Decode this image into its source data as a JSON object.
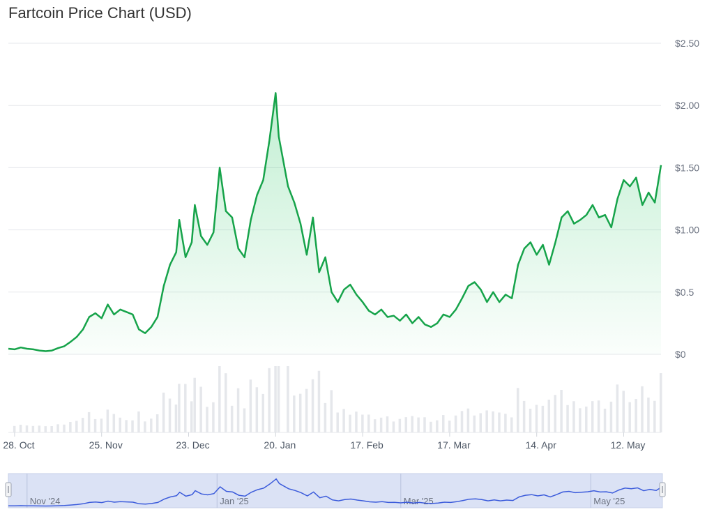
{
  "chart_data": {
    "type": "line",
    "title": "Fartcoin Price Chart (USD)",
    "currency": "USD",
    "y_ticks": [
      "$0",
      "$0.5",
      "$1.00",
      "$1.50",
      "$2.00",
      "$2.50"
    ],
    "y_tick_values": [
      0,
      0.5,
      1.0,
      1.5,
      2.0,
      2.5
    ],
    "ylim": [
      0,
      2.5
    ],
    "x_ticks": [
      "28. Oct",
      "25. Nov",
      "23. Dec",
      "20. Jan",
      "17. Feb",
      "17. Mar",
      "14. Apr",
      "12. May"
    ],
    "x_tick_dates": [
      "2024-10-28",
      "2024-11-25",
      "2024-12-23",
      "2025-01-20",
      "2025-02-17",
      "2025-03-17",
      "2025-04-14",
      "2025-05-12"
    ],
    "x_range": [
      "2024-10-26",
      "2025-05-24"
    ],
    "series": [
      {
        "color": "#16a34a",
        "points": [
          [
            "2024-10-26",
            0.045
          ],
          [
            "2024-10-28",
            0.04
          ],
          [
            "2024-10-30",
            0.055
          ],
          [
            "2024-11-01",
            0.045
          ],
          [
            "2024-11-03",
            0.04
          ],
          [
            "2024-11-05",
            0.03
          ],
          [
            "2024-11-07",
            0.025
          ],
          [
            "2024-11-09",
            0.03
          ],
          [
            "2024-11-11",
            0.05
          ],
          [
            "2024-11-13",
            0.065
          ],
          [
            "2024-11-15",
            0.1
          ],
          [
            "2024-11-17",
            0.14
          ],
          [
            "2024-11-19",
            0.2
          ],
          [
            "2024-11-21",
            0.3
          ],
          [
            "2024-11-23",
            0.33
          ],
          [
            "2024-11-25",
            0.29
          ],
          [
            "2024-11-27",
            0.4
          ],
          [
            "2024-11-29",
            0.32
          ],
          [
            "2024-12-01",
            0.36
          ],
          [
            "2024-12-03",
            0.34
          ],
          [
            "2024-12-05",
            0.32
          ],
          [
            "2024-12-07",
            0.2
          ],
          [
            "2024-12-09",
            0.17
          ],
          [
            "2024-12-11",
            0.22
          ],
          [
            "2024-12-13",
            0.3
          ],
          [
            "2024-12-15",
            0.55
          ],
          [
            "2024-12-17",
            0.72
          ],
          [
            "2024-12-19",
            0.82
          ],
          [
            "2024-12-20",
            1.08
          ],
          [
            "2024-12-22",
            0.78
          ],
          [
            "2024-12-24",
            0.9
          ],
          [
            "2024-12-25",
            1.2
          ],
          [
            "2024-12-27",
            0.95
          ],
          [
            "2024-12-29",
            0.88
          ],
          [
            "2024-12-31",
            0.98
          ],
          [
            "2025-01-02",
            1.5
          ],
          [
            "2025-01-04",
            1.15
          ],
          [
            "2025-01-06",
            1.1
          ],
          [
            "2025-01-08",
            0.85
          ],
          [
            "2025-01-10",
            0.78
          ],
          [
            "2025-01-12",
            1.08
          ],
          [
            "2025-01-14",
            1.28
          ],
          [
            "2025-01-16",
            1.4
          ],
          [
            "2025-01-18",
            1.72
          ],
          [
            "2025-01-20",
            2.1
          ],
          [
            "2025-01-21",
            1.75
          ],
          [
            "2025-01-24",
            1.35
          ],
          [
            "2025-01-26",
            1.22
          ],
          [
            "2025-01-28",
            1.05
          ],
          [
            "2025-01-30",
            0.8
          ],
          [
            "2025-02-01",
            1.1
          ],
          [
            "2025-02-03",
            0.66
          ],
          [
            "2025-02-05",
            0.78
          ],
          [
            "2025-02-07",
            0.5
          ],
          [
            "2025-02-09",
            0.42
          ],
          [
            "2025-02-11",
            0.52
          ],
          [
            "2025-02-13",
            0.56
          ],
          [
            "2025-02-15",
            0.48
          ],
          [
            "2025-02-17",
            0.42
          ],
          [
            "2025-02-19",
            0.35
          ],
          [
            "2025-02-21",
            0.32
          ],
          [
            "2025-02-23",
            0.36
          ],
          [
            "2025-02-25",
            0.3
          ],
          [
            "2025-02-27",
            0.31
          ],
          [
            "2025-03-01",
            0.27
          ],
          [
            "2025-03-03",
            0.32
          ],
          [
            "2025-03-05",
            0.25
          ],
          [
            "2025-03-07",
            0.3
          ],
          [
            "2025-03-09",
            0.24
          ],
          [
            "2025-03-11",
            0.22
          ],
          [
            "2025-03-13",
            0.25
          ],
          [
            "2025-03-15",
            0.32
          ],
          [
            "2025-03-17",
            0.3
          ],
          [
            "2025-03-19",
            0.36
          ],
          [
            "2025-03-21",
            0.45
          ],
          [
            "2025-03-23",
            0.55
          ],
          [
            "2025-03-25",
            0.58
          ],
          [
            "2025-03-27",
            0.52
          ],
          [
            "2025-03-29",
            0.42
          ],
          [
            "2025-03-31",
            0.5
          ],
          [
            "2025-04-02",
            0.42
          ],
          [
            "2025-04-04",
            0.48
          ],
          [
            "2025-04-06",
            0.45
          ],
          [
            "2025-04-08",
            0.72
          ],
          [
            "2025-04-10",
            0.85
          ],
          [
            "2025-04-12",
            0.9
          ],
          [
            "2025-04-14",
            0.8
          ],
          [
            "2025-04-16",
            0.88
          ],
          [
            "2025-04-18",
            0.72
          ],
          [
            "2025-04-20",
            0.9
          ],
          [
            "2025-04-22",
            1.1
          ],
          [
            "2025-04-24",
            1.15
          ],
          [
            "2025-04-26",
            1.05
          ],
          [
            "2025-04-28",
            1.08
          ],
          [
            "2025-04-30",
            1.12
          ],
          [
            "2025-05-02",
            1.2
          ],
          [
            "2025-05-04",
            1.1
          ],
          [
            "2025-05-06",
            1.12
          ],
          [
            "2025-05-08",
            1.02
          ],
          [
            "2025-05-10",
            1.25
          ],
          [
            "2025-05-12",
            1.4
          ],
          [
            "2025-05-14",
            1.35
          ],
          [
            "2025-05-16",
            1.42
          ],
          [
            "2025-05-18",
            1.2
          ],
          [
            "2025-05-20",
            1.3
          ],
          [
            "2025-05-22",
            1.22
          ],
          [
            "2025-05-24",
            1.52
          ]
        ]
      }
    ],
    "volume_color": "#e5e7eb",
    "navigator": {
      "labels": [
        "Nov '24",
        "Jan '25",
        "Mar '25",
        "May '25"
      ],
      "label_dates": [
        "2024-11-01",
        "2025-01-01",
        "2025-03-01",
        "2025-05-01"
      ],
      "line_color": "#3b5bdb",
      "selection_color": "#dbe2f5"
    },
    "grid": true
  }
}
